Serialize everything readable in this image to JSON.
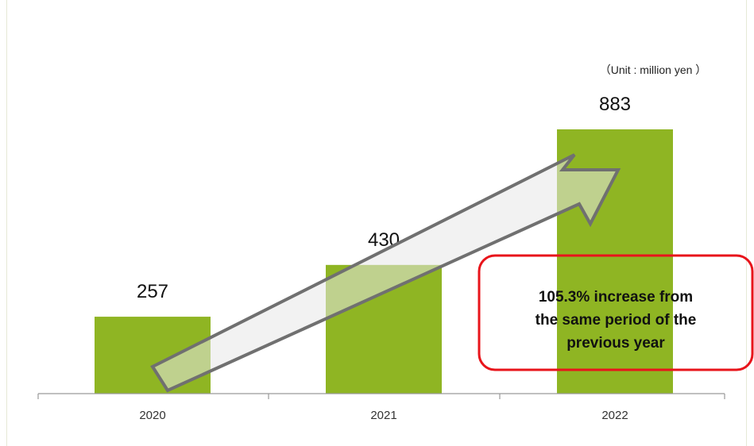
{
  "chart_data": {
    "type": "bar",
    "categories": [
      "2020",
      "2021",
      "2022"
    ],
    "values": [
      257,
      430,
      883
    ],
    "value_labels": [
      "257",
      "430",
      "883"
    ],
    "unit_note": "（Unit : million yen ）",
    "ylim": [
      0,
      1000
    ],
    "grid": false,
    "legend": "none",
    "bar_color": "#8fb523",
    "axis_color": "#9a9a9a",
    "arrow_fill": "#e8e8e8",
    "arrow_stroke": "#707070",
    "callout": {
      "lines": [
        "105.3% increase from",
        "the same period of the",
        "previous year"
      ],
      "border_color": "#e8141b"
    }
  }
}
